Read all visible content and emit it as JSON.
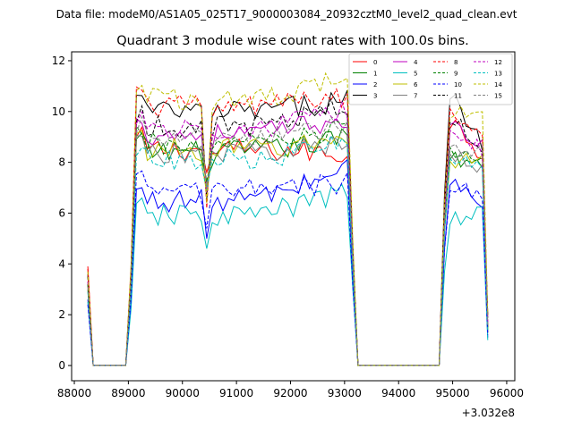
{
  "chart_data": {
    "type": "line",
    "suptitle": "Data file: modeM0/AS1A05_025T17_9000003084_20932cztM0_level2_quad_clean.evt",
    "title": "Quadrant 3 module wise count rates with 100.0s bins.",
    "xlabel": "",
    "ylabel": "",
    "x_offset_label": "+3.032e8",
    "xlim": [
      87950,
      96150
    ],
    "ylim": [
      -0.6,
      12.35
    ],
    "x_ticks": [
      88000,
      89000,
      90000,
      91000,
      92000,
      93000,
      94000,
      95000,
      96000
    ],
    "y_ticks": [
      0,
      2,
      4,
      6,
      8,
      10,
      12
    ],
    "x_tick_labels": [
      "88000",
      "89000",
      "90000",
      "91000",
      "92000",
      "93000",
      "94000",
      "95000",
      "96000"
    ],
    "y_tick_labels": [
      "0",
      "2",
      "4",
      "6",
      "8",
      "10",
      "12"
    ],
    "legend_location": "upper right, 4 columns",
    "x_start": 88250,
    "bin_seconds": 100,
    "gaps": [
      {
        "from": 88350,
        "to": 88950,
        "value": 0
      },
      {
        "from": 93250,
        "to": 94750,
        "value": 0
      }
    ],
    "series": [
      {
        "name": "0",
        "color": "#ff0000",
        "dash": false,
        "start": 3.9,
        "level": 8.5,
        "seg1_end": 8.3,
        "seg3_start": 9.5,
        "seg3_end": 8.3,
        "end": 1.5,
        "dip": 7.6
      },
      {
        "name": "1",
        "color": "#008000",
        "dash": false,
        "start": 3.2,
        "level": 8.4,
        "seg1_end": 9.0,
        "seg3_start": 8.2,
        "seg3_end": 8.0,
        "end": 1.3,
        "dip": 7.3
      },
      {
        "name": "2",
        "color": "#0000ff",
        "dash": false,
        "start": 2.6,
        "level": 6.5,
        "seg1_end": 7.9,
        "seg3_start": 7.1,
        "seg3_end": 6.5,
        "end": 1.1,
        "dip": 5.0
      },
      {
        "name": "3",
        "color": "#000000",
        "dash": false,
        "start": 3.6,
        "level": 10.0,
        "seg1_end": 10.5,
        "seg3_start": 10.4,
        "seg3_end": 8.8,
        "end": 2.0,
        "dip": 6.5
      },
      {
        "name": "4",
        "color": "#bf00bf",
        "dash": false,
        "start": 3.3,
        "level": 9.1,
        "seg1_end": 9.8,
        "seg3_start": 9.3,
        "seg3_end": 8.6,
        "end": 1.6,
        "dip": 7.0
      },
      {
        "name": "5",
        "color": "#00bfbf",
        "dash": false,
        "start": 2.5,
        "level": 5.9,
        "seg1_end": 6.9,
        "seg3_start": 5.7,
        "seg3_end": 6.0,
        "end": 1.0,
        "dip": 4.6
      },
      {
        "name": "6",
        "color": "#bfbf00",
        "dash": false,
        "start": 3.0,
        "level": 8.5,
        "seg1_end": 8.9,
        "seg3_start": 8.1,
        "seg3_end": 8.1,
        "end": 1.4,
        "dip": 6.8
      },
      {
        "name": "7",
        "color": "#808080",
        "dash": false,
        "start": 3.0,
        "level": 8.4,
        "seg1_end": 8.7,
        "seg3_start": 8.3,
        "seg3_end": 7.8,
        "end": 1.3,
        "dip": 7.0
      },
      {
        "name": "8",
        "color": "#ff0000",
        "dash": true,
        "start": 3.8,
        "level": 10.2,
        "seg1_end": 10.6,
        "seg3_start": 10.0,
        "seg3_end": 9.0,
        "end": 1.9,
        "dip": 6.2
      },
      {
        "name": "9",
        "color": "#008000",
        "dash": true,
        "start": 3.2,
        "level": 8.7,
        "seg1_end": 9.3,
        "seg3_start": 8.4,
        "seg3_end": 8.2,
        "end": 1.5,
        "dip": 7.2
      },
      {
        "name": "10",
        "color": "#0000ff",
        "dash": true,
        "start": 2.4,
        "level": 6.9,
        "seg1_end": 7.2,
        "seg3_start": 7.0,
        "seg3_end": 6.6,
        "end": 1.2,
        "dip": 5.4
      },
      {
        "name": "11",
        "color": "#000000",
        "dash": true,
        "start": 3.5,
        "level": 9.4,
        "seg1_end": 10.3,
        "seg3_start": 9.6,
        "seg3_end": 8.5,
        "end": 1.8,
        "dip": 6.6
      },
      {
        "name": "12",
        "color": "#bf00bf",
        "dash": true,
        "start": 3.3,
        "level": 9.3,
        "seg1_end": 10.0,
        "seg3_start": 9.2,
        "seg3_end": 8.4,
        "end": 1.7,
        "dip": 6.8
      },
      {
        "name": "13",
        "color": "#00bfbf",
        "dash": true,
        "start": 2.9,
        "level": 8.1,
        "seg1_end": 8.8,
        "seg3_start": 8.0,
        "seg3_end": 8.0,
        "end": 1.4,
        "dip": 6.9
      },
      {
        "name": "14",
        "color": "#bfbf00",
        "dash": true,
        "start": 3.7,
        "level": 10.5,
        "seg1_end": 11.3,
        "seg3_start": 9.9,
        "seg3_end": 10.3,
        "end": 2.0,
        "dip": 6.4
      },
      {
        "name": "15",
        "color": "#808080",
        "dash": true,
        "start": 3.1,
        "level": 8.9,
        "seg1_end": 9.5,
        "seg3_start": 8.7,
        "seg3_end": 8.3,
        "end": 1.6,
        "dip": 7.0
      }
    ]
  }
}
